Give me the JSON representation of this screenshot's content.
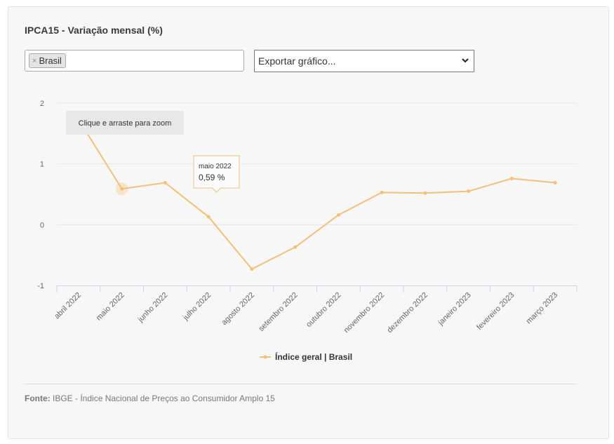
{
  "page": {
    "title": "IPCA15 - Variação mensal (%)"
  },
  "filter": {
    "tag_remove": "×",
    "tag_label": "Brasil"
  },
  "export": {
    "selected": "Exportar gráfico..."
  },
  "zoom_hint": "Clique e arraste para zoom",
  "tooltip": {
    "header": "maio 2022",
    "value": "0,59 %"
  },
  "source": {
    "label": "Fonte:",
    "text": "IBGE - Índice Nacional de Preços ao Consumidor Amplo 15"
  },
  "colors": {
    "series": "#f3c07a",
    "grid": "#e6e6e6",
    "axis": "#ccd6eb"
  },
  "chart_data": {
    "type": "line",
    "title": "IPCA15 - Variação mensal (%)",
    "categories": [
      "abril 2022",
      "maio 2022",
      "junho 2022",
      "julho 2022",
      "agosto 2022",
      "setembro 2022",
      "outubro 2022",
      "novembro 2022",
      "dezembro 2022",
      "janeiro 2023",
      "fevereiro 2023",
      "março 2023"
    ],
    "series": [
      {
        "name": "Índice geral | Brasil",
        "values": [
          1.73,
          0.59,
          0.69,
          0.13,
          -0.73,
          -0.37,
          0.16,
          0.53,
          0.52,
          0.55,
          0.76,
          0.69
        ]
      }
    ],
    "ylim": [
      -1,
      2
    ],
    "yticks": [
      2,
      1,
      0,
      -1
    ],
    "grid": true,
    "legend": "bottom-center",
    "highlighted_point": "maio 2022"
  }
}
